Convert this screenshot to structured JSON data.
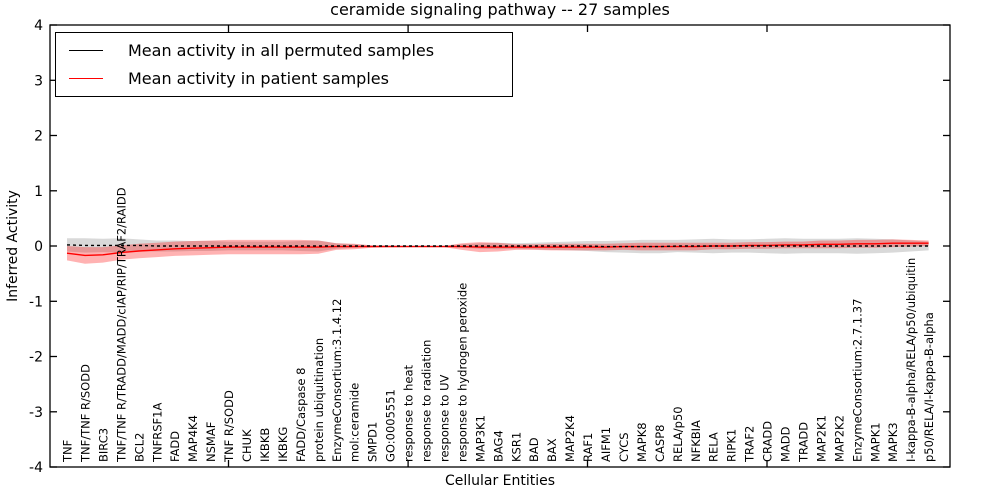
{
  "title": "ceramide signaling pathway -- 27 samples",
  "axes": {
    "ylabel": "Inferred Activity",
    "xlabel": "Cellular Entities"
  },
  "legend": {
    "position": "upper left",
    "items": [
      {
        "label": "Mean activity in all permuted samples",
        "color": "#000000"
      },
      {
        "label": "Mean activity in patient samples",
        "color": "#ff0000"
      }
    ]
  },
  "chart_data": {
    "type": "line",
    "title": "ceramide signaling pathway -- 27 samples",
    "xlabel": "Cellular Entities",
    "ylabel": "Inferred Activity",
    "ylim": [
      -4,
      4
    ],
    "ytick_labels": [
      "-4",
      "-3",
      "-2",
      "-1",
      "0",
      "1",
      "2",
      "3",
      "4"
    ],
    "yticks": [
      -4,
      -3,
      -2,
      -1,
      0,
      1,
      2,
      3,
      4
    ],
    "grid": false,
    "legend_position": "upper left",
    "categories": [
      "TNF",
      "TNF/TNF R/SODD",
      "BIRC3",
      "TNF/TNF R/TRADD/MADD/cIAP/RIP/TRAF2/RAIDD",
      "BCL2",
      "TNFRSF1A",
      "FADD",
      "MAP4K4",
      "NSMAF",
      "TNF R/SODD",
      "CHUK",
      "IKBKB",
      "IKBKG",
      "FADD/Caspase 8",
      "protein ubiquitination",
      "EnzymeConsortium:3.1.4.12",
      "mol:ceramide",
      "SMPD1",
      "GO:0005551",
      "response to heat",
      "response to radiation",
      "response to UV",
      "response to hydrogen peroxide",
      "MAP3K1",
      "BAG4",
      "KSR1",
      "BAD",
      "BAX",
      "MAP2K4",
      "RAF1",
      "AIFM1",
      "CYCS",
      "MAPK8",
      "CASP8",
      "RELA/p50",
      "NFKBIA",
      "RELA",
      "RIPK1",
      "TRAF2",
      "CRADD",
      "MADD",
      "TRADD",
      "MAP2K1",
      "MAP2K2",
      "EnzymeConsortium:2.7.1.37",
      "MAPK1",
      "MAPK3",
      "I-kappa-B-alpha/RELA/p50/ubiquitin",
      "p50/RELA/I-kappa-B-alpha"
    ],
    "series": [
      {
        "name": "Mean activity in all permuted samples",
        "color": "#000000",
        "line_style": "dashed",
        "band_color": "#000000",
        "band_opacity": 0.15,
        "values": [
          0.02,
          0.01,
          0.01,
          0.01,
          0.01,
          0,
          0,
          0,
          0,
          0,
          0,
          0,
          0,
          0,
          0,
          0,
          0,
          0,
          0,
          0,
          0,
          0,
          0,
          0,
          0,
          0,
          0,
          0,
          0,
          0,
          -0.01,
          -0.01,
          -0.01,
          -0.01,
          0,
          0,
          0,
          0,
          0,
          0,
          0,
          0,
          0,
          0,
          0,
          0,
          0,
          0,
          0
        ],
        "band_halfwidth": [
          0.12,
          0.13,
          0.12,
          0.13,
          0.11,
          0.1,
          0.1,
          0.09,
          0.09,
          0.08,
          0.08,
          0.08,
          0.08,
          0.09,
          0.1,
          0.05,
          0.03,
          0.015,
          0.01,
          0.01,
          0.01,
          0.01,
          0.03,
          0.05,
          0.06,
          0.05,
          0.06,
          0.07,
          0.08,
          0.09,
          0.1,
          0.11,
          0.12,
          0.12,
          0.11,
          0.12,
          0.13,
          0.12,
          0.12,
          0.13,
          0.14,
          0.13,
          0.13,
          0.13,
          0.14,
          0.13,
          0.12,
          0.1,
          0.08
        ]
      },
      {
        "name": "Mean activity in patient samples",
        "color": "#ff0000",
        "line_style": "solid",
        "band_color": "#ff0000",
        "band_opacity": 0.3,
        "values": [
          -0.13,
          -0.17,
          -0.16,
          -0.12,
          -0.09,
          -0.07,
          -0.05,
          -0.04,
          -0.03,
          -0.02,
          -0.02,
          -0.02,
          -0.02,
          -0.02,
          -0.02,
          -0.01,
          -0.01,
          -0.01,
          -0.01,
          -0.01,
          -0.01,
          -0.01,
          -0.01,
          -0.02,
          -0.02,
          -0.02,
          -0.02,
          -0.02,
          -0.02,
          -0.02,
          -0.02,
          -0.01,
          -0.01,
          -0.01,
          -0.01,
          -0.01,
          0,
          0,
          0.01,
          0.01,
          0.02,
          0.02,
          0.03,
          0.03,
          0.04,
          0.04,
          0.05,
          0.05,
          0.05
        ],
        "band_halfwidth": [
          0.13,
          0.15,
          0.14,
          0.13,
          0.13,
          0.13,
          0.13,
          0.13,
          0.13,
          0.13,
          0.13,
          0.13,
          0.13,
          0.13,
          0.12,
          0.06,
          0.05,
          0.02,
          0.015,
          0.01,
          0.01,
          0.01,
          0.06,
          0.09,
          0.08,
          0.05,
          0.05,
          0.06,
          0.06,
          0.06,
          0.06,
          0.06,
          0.07,
          0.07,
          0.07,
          0.07,
          0.06,
          0.06,
          0.06,
          0.06,
          0.06,
          0.06,
          0.07,
          0.07,
          0.07,
          0.07,
          0.07,
          0.06,
          0.05
        ]
      }
    ],
    "x_major_tick_indices": [
      9,
      19,
      29,
      39
    ]
  }
}
